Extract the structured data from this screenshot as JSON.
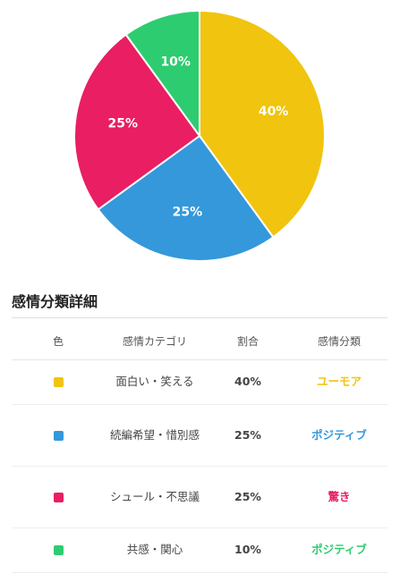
{
  "chart_data": {
    "type": "pie",
    "slices": [
      {
        "label": "面白い・笑える",
        "value": 40,
        "display": "40%",
        "color": "#f1c40f"
      },
      {
        "label": "続編希望・惜別感",
        "value": 25,
        "display": "25%",
        "color": "#3498db"
      },
      {
        "label": "シュール・不思議",
        "value": 25,
        "display": "25%",
        "color": "#e91e63"
      },
      {
        "label": "共感・関心",
        "value": 10,
        "display": "10%",
        "color": "#2ecc71"
      }
    ],
    "start": "12 o'clock",
    "direction": "clockwise",
    "legend": "none"
  },
  "section": {
    "title": "感情分類詳細"
  },
  "table": {
    "headers": {
      "color": "色",
      "category": "感情カテゴリ",
      "ratio": "割合",
      "classification": "感情分類"
    },
    "rows": [
      {
        "color": "#f1c40f",
        "category": "面白い・笑える",
        "ratio": "40%",
        "classification": "ユーモア",
        "class_color": "#f1c40f"
      },
      {
        "color": "#3498db",
        "category": "続編希望・惜別感",
        "ratio": "25%",
        "classification": "ポジティブ",
        "class_color": "#3498db"
      },
      {
        "color": "#e91e63",
        "category": "シュール・不思議",
        "ratio": "25%",
        "classification": "驚き",
        "class_color": "#e91e63"
      },
      {
        "color": "#2ecc71",
        "category": "共感・関心",
        "ratio": "10%",
        "classification": "ポジティブ",
        "class_color": "#2ecc71"
      }
    ]
  }
}
